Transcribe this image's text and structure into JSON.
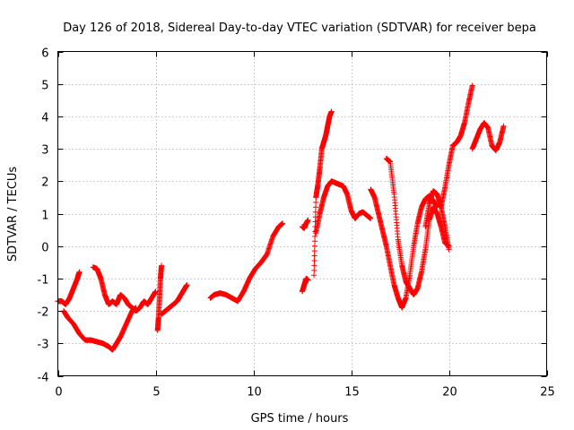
{
  "chart_data": {
    "type": "scatter",
    "title": "Day 126 of 2018, Sidereal Day-to-day VTEC variation (SDTVAR) for receiver bepa",
    "xlabel": "GPS time / hours",
    "ylabel": "SDTVAR / TECUs",
    "xlim": [
      0,
      25
    ],
    "ylim": [
      -4,
      6
    ],
    "xticks": [
      0,
      5,
      10,
      15,
      20,
      25
    ],
    "yticks": [
      -4,
      -3,
      -2,
      -1,
      0,
      1,
      2,
      3,
      4,
      5,
      6
    ],
    "grid": true,
    "marker": "+",
    "color": "#ff0000",
    "series": [
      {
        "name": "s1",
        "x": [
          0.0,
          0.2,
          0.4,
          0.6,
          0.8,
          1.0,
          1.1
        ],
        "y": [
          -1.7,
          -1.7,
          -1.8,
          -1.6,
          -1.3,
          -1.0,
          -0.8
        ]
      },
      {
        "name": "s2",
        "x": [
          0.3,
          0.5,
          0.8,
          1.1,
          1.4,
          1.7,
          2.0,
          2.3,
          2.6,
          2.8,
          3.0,
          3.2,
          3.5,
          3.8,
          4.0
        ],
        "y": [
          -2.0,
          -2.2,
          -2.4,
          -2.7,
          -2.9,
          -2.9,
          -2.95,
          -3.0,
          -3.1,
          -3.2,
          -3.0,
          -2.8,
          -2.4,
          -2.0,
          -1.9
        ]
      },
      {
        "name": "s3",
        "x": [
          1.8,
          2.0,
          2.2,
          2.4,
          2.6,
          2.8,
          3.0,
          3.2,
          3.4,
          3.6,
          3.8,
          4.0,
          4.2,
          4.4,
          4.6,
          4.8,
          5.0
        ],
        "y": [
          -0.65,
          -0.7,
          -1.0,
          -1.5,
          -1.8,
          -1.7,
          -1.8,
          -1.5,
          -1.6,
          -1.8,
          -1.9,
          -2.0,
          -1.9,
          -1.7,
          -1.8,
          -1.6,
          -1.4
        ]
      },
      {
        "name": "s4",
        "x": [
          5.1,
          5.15,
          5.2,
          5.25,
          5.3
        ],
        "y": [
          -2.6,
          -2.2,
          -1.6,
          -1.0,
          -0.6
        ]
      },
      {
        "name": "s5",
        "x": [
          5.3,
          5.5,
          5.7,
          5.9,
          6.1,
          6.3,
          6.5,
          6.6
        ],
        "y": [
          -2.1,
          -2.0,
          -1.9,
          -1.8,
          -1.7,
          -1.5,
          -1.3,
          -1.2
        ]
      },
      {
        "name": "s6",
        "x": [
          7.8,
          8.0,
          8.3,
          8.6,
          8.9,
          9.2,
          9.5,
          9.8,
          10.1,
          10.4,
          10.7,
          11.0,
          11.3,
          11.5
        ],
        "y": [
          -1.6,
          -1.5,
          -1.45,
          -1.5,
          -1.6,
          -1.7,
          -1.4,
          -1.0,
          -0.7,
          -0.5,
          -0.25,
          0.3,
          0.6,
          0.7
        ]
      },
      {
        "name": "s7",
        "x": [
          12.5,
          12.6,
          12.7,
          12.8
        ],
        "y": [
          -1.4,
          -1.2,
          -1.0,
          -1.05
        ]
      },
      {
        "name": "s8",
        "x": [
          12.5,
          12.6,
          12.7,
          12.8
        ],
        "y": [
          0.6,
          0.55,
          0.7,
          0.8
        ]
      },
      {
        "name": "s9",
        "x": [
          13.1,
          13.2,
          13.3,
          13.4,
          13.5,
          13.6,
          13.7,
          13.8,
          13.9,
          14.0
        ],
        "y": [
          -0.9,
          1.5,
          1.9,
          2.4,
          3.0,
          3.2,
          3.4,
          3.7,
          4.0,
          4.15
        ]
      },
      {
        "name": "s10",
        "x": [
          13.2,
          13.4,
          13.6,
          13.8,
          14.0,
          14.2,
          14.4,
          14.6,
          14.8,
          15.0,
          15.2,
          15.4,
          15.6,
          15.8,
          16.0
        ],
        "y": [
          0.4,
          1.0,
          1.5,
          1.85,
          2.0,
          1.95,
          1.9,
          1.85,
          1.6,
          1.1,
          0.85,
          1.0,
          1.05,
          0.95,
          0.85
        ]
      },
      {
        "name": "s11",
        "x": [
          16.0,
          16.2,
          16.4,
          16.6,
          16.8,
          17.0,
          17.2,
          17.4,
          17.6,
          17.8,
          18.0,
          18.2,
          18.4,
          18.6,
          18.8,
          19.0,
          19.2,
          19.4
        ],
        "y": [
          1.75,
          1.5,
          1.0,
          0.5,
          0.0,
          -0.6,
          -1.2,
          -1.6,
          -1.9,
          -1.6,
          -0.9,
          0.0,
          0.7,
          1.2,
          1.45,
          1.55,
          1.4,
          1.2
        ]
      },
      {
        "name": "s12",
        "x": [
          16.8,
          17.0,
          17.2,
          17.4,
          17.6,
          17.8,
          18.0,
          18.2,
          18.4,
          18.6,
          18.8,
          19.0,
          19.2,
          19.4,
          19.6,
          19.8,
          20.0
        ],
        "y": [
          2.7,
          2.6,
          1.6,
          0.2,
          -0.6,
          -1.1,
          -1.3,
          -1.5,
          -1.3,
          -0.8,
          -0.1,
          0.8,
          1.2,
          1.0,
          0.6,
          0.1,
          0.0
        ]
      },
      {
        "name": "s13",
        "x": [
          18.8,
          19.0,
          19.2,
          19.4,
          19.6,
          19.8,
          20.0
        ],
        "y": [
          0.6,
          1.3,
          1.7,
          1.6,
          1.2,
          0.6,
          -0.1
        ]
      },
      {
        "name": "s14",
        "x": [
          19.6,
          19.8,
          20.0,
          20.2,
          20.4,
          20.6,
          20.8,
          21.0,
          21.2
        ],
        "y": [
          1.2,
          1.8,
          2.5,
          3.1,
          3.2,
          3.4,
          3.8,
          4.4,
          4.95
        ]
      },
      {
        "name": "s15",
        "x": [
          21.2,
          21.4,
          21.6,
          21.8,
          22.0,
          22.2,
          22.4,
          22.6,
          22.8
        ],
        "y": [
          3.0,
          3.3,
          3.6,
          3.8,
          3.65,
          3.1,
          2.95,
          3.2,
          3.7
        ]
      }
    ]
  }
}
